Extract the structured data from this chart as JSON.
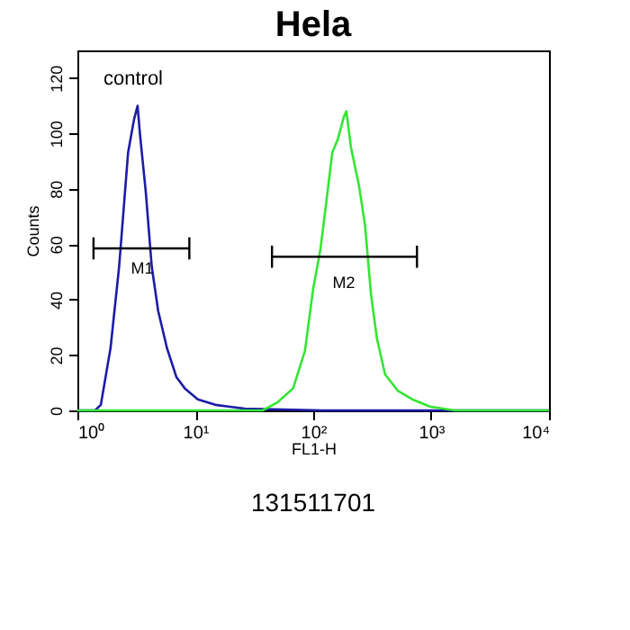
{
  "chart_data": {
    "type": "line",
    "title": "Hela",
    "xlabel": "FL1-H",
    "ylabel": "Counts",
    "log": "x",
    "xlim": [
      1,
      10000
    ],
    "xticks": [
      {
        "value": 1,
        "label": "10⁰"
      },
      {
        "value": 10,
        "label": "10¹"
      },
      {
        "value": 100,
        "label": "10²"
      },
      {
        "value": 1000,
        "label": "10³"
      },
      {
        "value": 10000,
        "label": "10⁴"
      }
    ],
    "ylim": [
      0,
      130
    ],
    "yticks": [
      0,
      20,
      40,
      60,
      80,
      100,
      120
    ],
    "grid": false,
    "series": [
      {
        "color": "#1c1ca8",
        "x": [
          1,
          1.41,
          1.58,
          1.91,
          2.26,
          2.69,
          3.02,
          3.24,
          3.39,
          3.8,
          4.27,
          4.84,
          5.75,
          6.92,
          8.13,
          10.5,
          14.8,
          26.3,
          120,
          10000
        ],
        "values": [
          0,
          0,
          2,
          22.5,
          52,
          93,
          105,
          110,
          100,
          79,
          52,
          36,
          22.5,
          12,
          8,
          4,
          2,
          0.6,
          0,
          0
        ]
      },
      {
        "color": "#33e633",
        "x": [
          1,
          37.2,
          50.1,
          67.6,
          85.1,
          100,
          115,
          129,
          145,
          162,
          182,
          191,
          209,
          245,
          275,
          309,
          347,
          407,
          525,
          692,
          977,
          1585,
          10000
        ],
        "values": [
          0,
          0,
          3,
          8,
          21.5,
          44,
          58,
          75,
          93,
          98,
          106,
          108,
          95,
          81,
          67,
          42,
          26,
          13,
          7,
          4,
          1.4,
          0,
          0
        ]
      },
      {
        "color": "#000000",
        "x": [
          1.37,
          8.9
        ],
        "values": [
          58.5,
          58.5
        ],
        "errors": [
          4,
          4
        ]
      },
      {
        "color": "#000000",
        "x": [
          44.7,
          759
        ],
        "values": [
          55.5,
          55.5
        ],
        "errors": [
          4,
          4
        ]
      }
    ],
    "annotations": [
      "control",
      "M1",
      "M2",
      "131511701"
    ]
  }
}
